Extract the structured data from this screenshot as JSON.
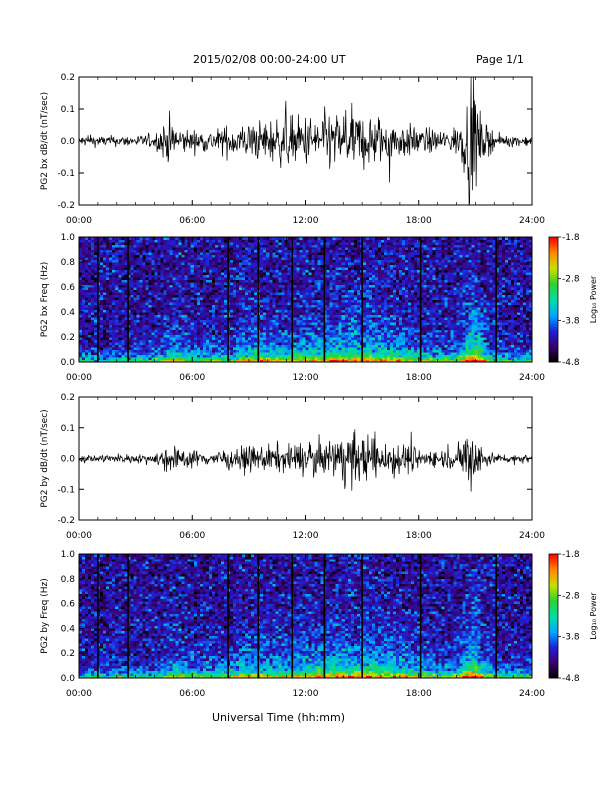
{
  "header": {
    "title": "2015/02/08  00:00-24:00 UT",
    "page": "Page 1/1"
  },
  "footer": {
    "xlabel": "Universal Time (hh:mm)"
  },
  "colorbar": {
    "label": "Log₁₀ Power",
    "ticks": [
      "-1.8",
      "-2.8",
      "-3.8",
      "-4.8"
    ],
    "tick_values": [
      -1.8,
      -2.8,
      -3.8,
      -4.8
    ],
    "range": [
      -4.8,
      -1.8
    ],
    "colormap": [
      "#000000",
      "#3a0070",
      "#2020d8",
      "#00a8ff",
      "#00e0a0",
      "#30d030",
      "#c8e000",
      "#ff8800",
      "#ff0000"
    ]
  },
  "chart_data": [
    {
      "type": "line",
      "ylabel": "PG2 bx dB/dt (nT/sec)",
      "xlabel": "",
      "xlim": [
        0,
        24
      ],
      "ylim": [
        -0.2,
        0.2
      ],
      "xticks": [
        "00:00",
        "06:00",
        "12:00",
        "18:00",
        "24:00"
      ],
      "yticks": [
        "0.2",
        "0.1",
        "0.0",
        "-0.1",
        "-0.2"
      ],
      "ytick_values": [
        0.2,
        0.1,
        0.0,
        -0.1,
        -0.2
      ],
      "envelope_hours": [
        0,
        1,
        2,
        3,
        4,
        4.8,
        5.2,
        6,
        7,
        8,
        9,
        10,
        11,
        12,
        13,
        14,
        15,
        16,
        17,
        18,
        19,
        20,
        20.5,
        20.9,
        21.3,
        22,
        23,
        24
      ],
      "envelope_amplitude": [
        0.015,
        0.015,
        0.015,
        0.015,
        0.02,
        0.07,
        0.04,
        0.03,
        0.03,
        0.045,
        0.05,
        0.06,
        0.07,
        0.07,
        0.08,
        0.08,
        0.08,
        0.07,
        0.05,
        0.04,
        0.03,
        0.04,
        0.1,
        0.2,
        0.06,
        0.02,
        0.015,
        0.015
      ],
      "series": [
        {
          "values": []
        }
      ]
    },
    {
      "type": "heatmap",
      "ylabel": "PG2 bx Freq (Hz)",
      "xlabel": "",
      "xlim": [
        0,
        24
      ],
      "ylim": [
        0.0,
        1.0
      ],
      "xticks": [
        "00:00",
        "06:00",
        "12:00",
        "18:00",
        "24:00"
      ],
      "yticks": [
        "1.0",
        "0.8",
        "0.6",
        "0.4",
        "0.2",
        "0.0"
      ],
      "ytick_values": [
        1.0,
        0.8,
        0.6,
        0.4,
        0.2,
        0.0
      ],
      "zlim": [
        -4.8,
        -1.8
      ],
      "activity_hours": [
        0,
        2,
        4,
        5,
        6,
        8,
        9.5,
        10,
        11,
        12,
        13,
        14,
        15,
        16,
        17,
        18,
        19,
        20,
        20.9,
        22,
        24
      ],
      "activity_level": [
        0.15,
        0.15,
        0.2,
        0.45,
        0.3,
        0.35,
        0.55,
        0.45,
        0.45,
        0.5,
        0.55,
        0.6,
        0.6,
        0.55,
        0.5,
        0.4,
        0.3,
        0.35,
        0.85,
        0.25,
        0.15
      ],
      "gap_hours": [
        1.0,
        2.6,
        7.9,
        9.5,
        11.3,
        13.0,
        15.0,
        18.1,
        22.1
      ]
    },
    {
      "type": "line",
      "ylabel": "PG2 by dB/dt (nT/sec)",
      "xlabel": "",
      "xlim": [
        0,
        24
      ],
      "ylim": [
        -0.2,
        0.2
      ],
      "xticks": [
        "00:00",
        "06:00",
        "12:00",
        "18:00",
        "24:00"
      ],
      "yticks": [
        "0.2",
        "0.1",
        "0.0",
        "-0.1",
        "-0.2"
      ],
      "ytick_values": [
        0.2,
        0.1,
        0.0,
        -0.1,
        -0.2
      ],
      "envelope_hours": [
        0,
        1,
        2,
        3,
        4,
        4.8,
        5.2,
        6,
        7,
        8,
        9,
        10,
        11,
        12,
        13,
        14,
        14.5,
        15,
        16,
        17,
        18,
        19,
        20,
        20.9,
        21.3,
        22,
        23,
        24
      ],
      "envelope_amplitude": [
        0.012,
        0.012,
        0.012,
        0.012,
        0.015,
        0.05,
        0.03,
        0.025,
        0.02,
        0.03,
        0.035,
        0.04,
        0.04,
        0.05,
        0.05,
        0.07,
        0.08,
        0.07,
        0.06,
        0.05,
        0.03,
        0.025,
        0.03,
        0.1,
        0.04,
        0.015,
        0.012,
        0.012
      ],
      "series": [
        {
          "values": []
        }
      ]
    },
    {
      "type": "heatmap",
      "ylabel": "PG2 by Freq (Hz)",
      "xlabel": "",
      "xlim": [
        0,
        24
      ],
      "ylim": [
        0.0,
        1.0
      ],
      "xticks": [
        "00:00",
        "06:00",
        "12:00",
        "18:00",
        "24:00"
      ],
      "yticks": [
        "1.0",
        "0.8",
        "0.6",
        "0.4",
        "0.2",
        "0.0"
      ],
      "ytick_values": [
        1.0,
        0.8,
        0.6,
        0.4,
        0.2,
        0.0
      ],
      "zlim": [
        -4.8,
        -1.8
      ],
      "activity_hours": [
        0,
        2,
        4,
        5,
        6,
        8,
        9.5,
        10,
        11,
        12,
        13,
        14,
        15,
        16,
        17,
        18,
        19,
        20,
        20.9,
        22,
        24
      ],
      "activity_level": [
        0.15,
        0.15,
        0.2,
        0.4,
        0.3,
        0.35,
        0.5,
        0.45,
        0.45,
        0.5,
        0.55,
        0.6,
        0.6,
        0.55,
        0.5,
        0.4,
        0.3,
        0.35,
        0.8,
        0.25,
        0.15
      ],
      "gap_hours": [
        1.0,
        2.6,
        7.9,
        9.5,
        11.3,
        13.0,
        15.0,
        18.1,
        22.1
      ]
    }
  ]
}
